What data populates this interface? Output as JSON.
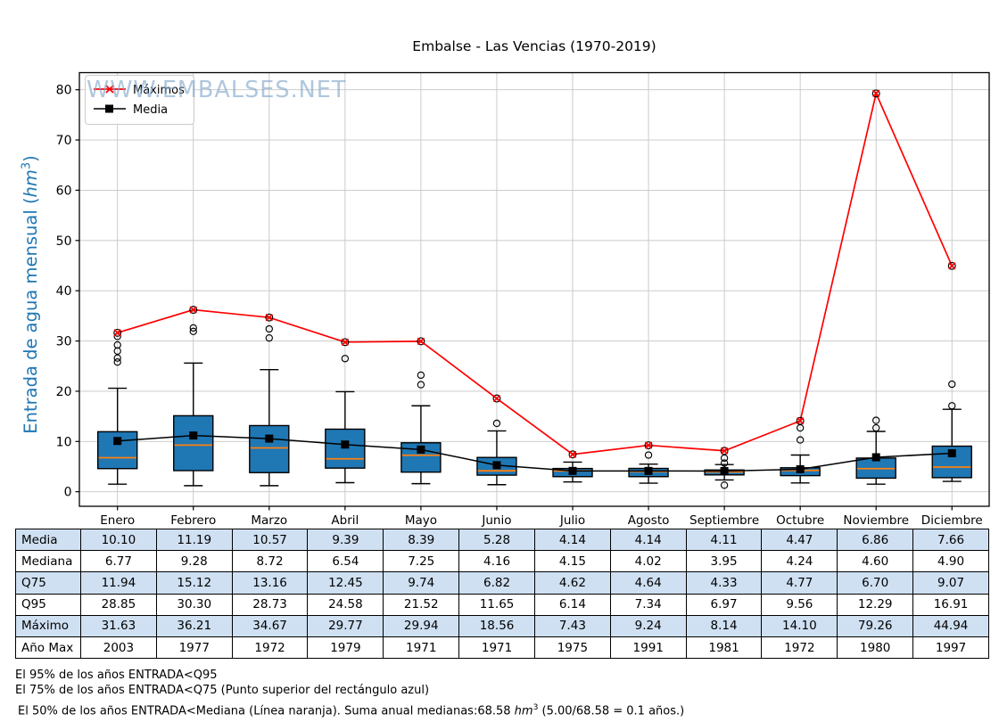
{
  "figure": {
    "title": "Embalse - Las Vencias (1970-2019)",
    "watermark": "WWW.EMBALSES.NET",
    "ylabel": {
      "pre": "Entrada de agua mensual (",
      "unit": "hm",
      "sup": "3",
      "post": ")"
    },
    "legend": {
      "maximos": "Máximos",
      "media": "Media"
    }
  },
  "chart_data": {
    "type": "boxplot",
    "title": "Embalse - Las Vencias (1970-2019)",
    "ylabel": "Entrada de agua mensual (hm³)",
    "categories": [
      "Enero",
      "Febrero",
      "Marzo",
      "Abril",
      "Mayo",
      "Junio",
      "Julio",
      "Agosto",
      "Septiembre",
      "Octubre",
      "Noviembre",
      "Diciembre"
    ],
    "ylim": [
      -2.9,
      83.4
    ],
    "yticks": [
      0,
      10,
      20,
      30,
      40,
      50,
      60,
      70,
      80
    ],
    "grid": true,
    "legend_position": "upper-left",
    "series": [
      {
        "name": "Máximos",
        "type": "line",
        "color": "#ff0000",
        "marker": "x",
        "values": [
          31.63,
          36.21,
          34.67,
          29.77,
          29.94,
          18.56,
          7.43,
          9.24,
          8.14,
          14.1,
          79.26,
          44.94
        ]
      },
      {
        "name": "Media",
        "type": "line",
        "color": "#000000",
        "marker": "square",
        "values": [
          10.1,
          11.19,
          10.57,
          9.39,
          8.39,
          5.28,
          4.14,
          4.14,
          4.11,
          4.47,
          6.86,
          7.66
        ]
      }
    ],
    "boxplots": [
      {
        "month": "Enero",
        "q1": 4.6,
        "median": 6.77,
        "q3": 11.94,
        "whisker_low": 1.5,
        "whisker_high": 20.6,
        "outliers": [
          25.8,
          26.6,
          28.0,
          29.2,
          30.9
        ]
      },
      {
        "month": "Febrero",
        "q1": 4.2,
        "median": 9.28,
        "q3": 15.12,
        "whisker_low": 1.2,
        "whisker_high": 25.6,
        "outliers": [
          31.9,
          32.6
        ]
      },
      {
        "month": "Marzo",
        "q1": 3.8,
        "median": 8.72,
        "q3": 13.16,
        "whisker_low": 1.2,
        "whisker_high": 24.3,
        "outliers": [
          30.6,
          32.4
        ]
      },
      {
        "month": "Abril",
        "q1": 4.7,
        "median": 6.54,
        "q3": 12.45,
        "whisker_low": 1.8,
        "whisker_high": 19.9,
        "outliers": [
          26.5
        ]
      },
      {
        "month": "Mayo",
        "q1": 3.9,
        "median": 7.25,
        "q3": 9.74,
        "whisker_low": 1.6,
        "whisker_high": 17.1,
        "outliers": [
          21.3,
          23.2
        ]
      },
      {
        "month": "Junio",
        "q1": 3.3,
        "median": 4.16,
        "q3": 6.82,
        "whisker_low": 1.4,
        "whisker_high": 12.1,
        "outliers": [
          13.6
        ]
      },
      {
        "month": "Julio",
        "q1": 3.0,
        "median": 4.15,
        "q3": 4.62,
        "whisker_low": 1.95,
        "whisker_high": 5.9,
        "outliers": []
      },
      {
        "month": "Agosto",
        "q1": 3.0,
        "median": 4.02,
        "q3": 4.64,
        "whisker_low": 1.7,
        "whisker_high": 5.5,
        "outliers": [
          7.3
        ]
      },
      {
        "month": "Septiembre",
        "q1": 3.35,
        "median": 3.95,
        "q3": 4.33,
        "whisker_low": 2.35,
        "whisker_high": 5.4,
        "outliers": [
          1.3,
          5.7,
          6.7
        ]
      },
      {
        "month": "Octubre",
        "q1": 3.2,
        "median": 4.24,
        "q3": 4.77,
        "whisker_low": 1.75,
        "whisker_high": 7.3,
        "outliers": [
          10.3,
          12.7
        ]
      },
      {
        "month": "Noviembre",
        "q1": 2.7,
        "median": 4.6,
        "q3": 6.7,
        "whisker_low": 1.5,
        "whisker_high": 12.0,
        "outliers": [
          12.7,
          14.2
        ]
      },
      {
        "month": "Diciembre",
        "q1": 2.8,
        "median": 4.9,
        "q3": 9.07,
        "whisker_low": 2.05,
        "whisker_high": 16.4,
        "outliers": [
          17.1,
          21.4
        ]
      }
    ],
    "colors": {
      "box_fill": "#1f77b4",
      "box_edge": "#000000",
      "median": "#ff7f0e",
      "maximos": "#ff0000",
      "media": "#000000",
      "grid": "#c6c6c6",
      "ylabel": "#1f77b4",
      "watermark": "#7fa5cb",
      "table_highlight": "#cfe0f2"
    }
  },
  "table": {
    "columns": [
      "Enero",
      "Febrero",
      "Marzo",
      "Abril",
      "Mayo",
      "Junio",
      "Julio",
      "Agosto",
      "Septiembre",
      "Octubre",
      "Noviembre",
      "Diciembre"
    ],
    "rows": [
      {
        "label": "Media",
        "values": [
          "10.10",
          "11.19",
          "10.57",
          "9.39",
          "8.39",
          "5.28",
          "4.14",
          "4.14",
          "4.11",
          "4.47",
          "6.86",
          "7.66"
        ]
      },
      {
        "label": "Mediana",
        "values": [
          "6.77",
          "9.28",
          "8.72",
          "6.54",
          "7.25",
          "4.16",
          "4.15",
          "4.02",
          "3.95",
          "4.24",
          "4.60",
          "4.90"
        ]
      },
      {
        "label": "Q75",
        "values": [
          "11.94",
          "15.12",
          "13.16",
          "12.45",
          "9.74",
          "6.82",
          "4.62",
          "4.64",
          "4.33",
          "4.77",
          "6.70",
          "9.07"
        ]
      },
      {
        "label": "Q95",
        "values": [
          "28.85",
          "30.30",
          "28.73",
          "24.58",
          "21.52",
          "11.65",
          "6.14",
          "7.34",
          "6.97",
          "9.56",
          "12.29",
          "16.91"
        ]
      },
      {
        "label": "Máximo",
        "values": [
          "31.63",
          "36.21",
          "34.67",
          "29.77",
          "29.94",
          "18.56",
          "7.43",
          "9.24",
          "8.14",
          "14.10",
          "79.26",
          "44.94"
        ]
      },
      {
        "label": "Año Max",
        "values": [
          "2003",
          "1977",
          "1972",
          "1979",
          "1971",
          "1971",
          "1975",
          "1991",
          "1981",
          "1972",
          "1980",
          "1997"
        ]
      }
    ]
  },
  "footnotes": {
    "line1": "El 95% de los años ENTRADA<Q95",
    "line2": "El 75% de los años ENTRADA<Q75 (Punto superior del rectángulo azul)",
    "line3_pre": "El 50% de los años ENTRADA<Mediana (Línea naranja). Suma anual medianas:68.58 ",
    "line3_unit": "hm",
    "line3_sup": "3",
    "line3_post": " (5.00/68.58 = 0.1 años.)"
  }
}
